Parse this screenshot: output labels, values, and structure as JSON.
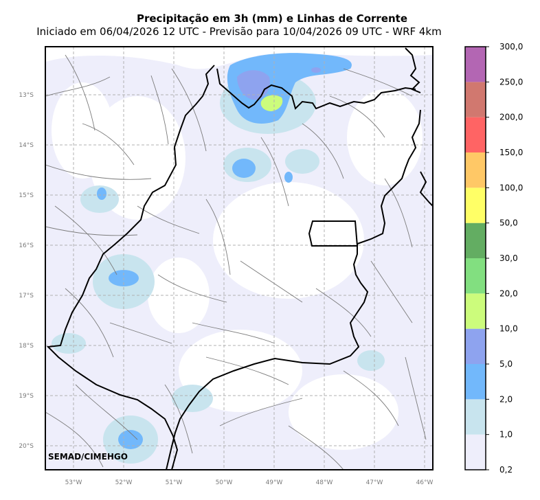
{
  "title": "Precipitação em 3h (mm) e Linhas de Corrente",
  "subtitle": "Iniciado em 06/04/2026 12 UTC - Previsão para 10/04/2026 09 UTC - WRF 4km",
  "credit": "SEMAD/CIMEHGO",
  "lat_labels": [
    "13°S",
    "14°S",
    "15°S",
    "16°S",
    "17°S",
    "18°S",
    "19°S",
    "20°S"
  ],
  "lon_labels": [
    "53°W",
    "52°W",
    "51°W",
    "50°W",
    "49°W",
    "48°W",
    "47°W",
    "46°W"
  ],
  "colorbar": {
    "labels": [
      "0,2",
      "1,0",
      "2,0",
      "5,0",
      "10,0",
      "20,0",
      "30,0",
      "50,0",
      "100,0",
      "150,0",
      "200,0",
      "250,0",
      "300,0"
    ],
    "colors": [
      "#eeeefb",
      "#c8e4ee",
      "#72b8fb",
      "#8ea3ef",
      "#ccfc7c",
      "#82df80",
      "#63ad62",
      "#ffff66",
      "#ffc866",
      "#ff6464",
      "#d1786f",
      "#b366b3"
    ]
  }
}
